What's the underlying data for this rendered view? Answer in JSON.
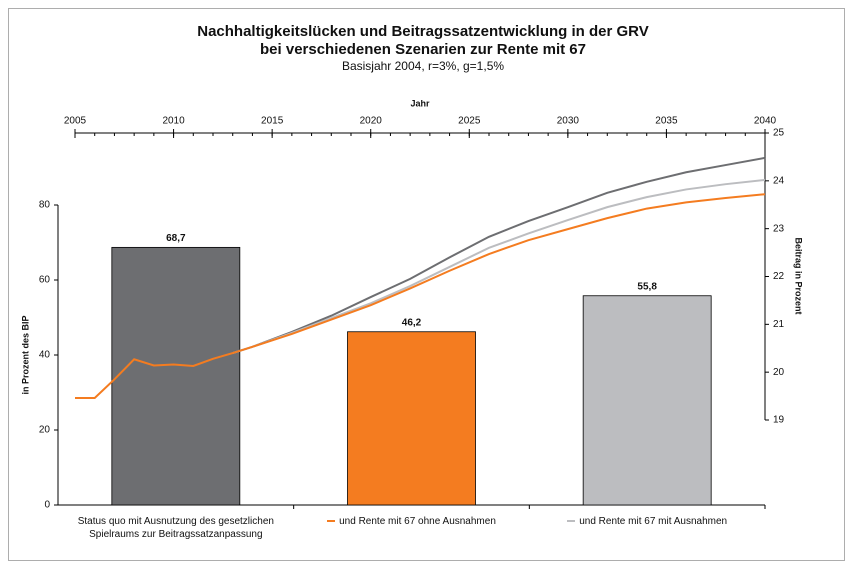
{
  "chart_data": [
    {
      "type": "bar",
      "title": "Nachhaltigkeitslücken und Beitragssatzentwicklung in der GRV",
      "title2": "bei verschiedenen Szenarien zur Rente mit 67",
      "subtitle": "Basisjahr 2004, r=3%, g=1,5%",
      "ylabel": "in Prozent des BIP",
      "categories": [
        "Status quo mit Ausnutzung des gesetzlichen Spielraums zur Beitragssatzanpassung",
        "und Rente mit 67 ohne Ausnahmen",
        "und Rente mit 67 mit Ausnahmen"
      ],
      "values": [
        68.7,
        46.2,
        55.8
      ],
      "value_labels": [
        "68,7",
        "46,2",
        "55,8"
      ],
      "colors": [
        "#6d6e71",
        "#f47c20",
        "#bcbdc0"
      ],
      "ylim": [
        0,
        80
      ],
      "yticks": [
        0,
        20,
        40,
        60,
        80
      ]
    },
    {
      "type": "line",
      "xlabel": "Jahr",
      "ylabel": "Beitrag in Prozent",
      "x": [
        2005,
        2006,
        2007,
        2008,
        2009,
        2010,
        2011,
        2012,
        2013,
        2014,
        2016,
        2018,
        2020,
        2022,
        2024,
        2026,
        2028,
        2030,
        2032,
        2034,
        2036,
        2038,
        2040
      ],
      "series": [
        {
          "name": "Status quo",
          "color": "#6d6e71",
          "values": [
            null,
            null,
            null,
            null,
            null,
            null,
            null,
            null,
            20.4,
            20.53,
            20.84,
            21.18,
            21.57,
            21.95,
            22.4,
            22.83,
            23.16,
            23.45,
            23.75,
            23.98,
            24.18,
            24.33,
            24.48
          ]
        },
        {
          "name": "mit Ausnahmen",
          "color": "#bcbdc0",
          "values": [
            null,
            null,
            null,
            null,
            null,
            null,
            null,
            null,
            20.4,
            20.53,
            20.82,
            21.13,
            21.44,
            21.8,
            22.2,
            22.6,
            22.9,
            23.18,
            23.45,
            23.66,
            23.82,
            23.93,
            24.02
          ]
        },
        {
          "name": "ohne Ausnahmen",
          "color": "#f47c20",
          "values": [
            19.46,
            19.46,
            19.85,
            20.27,
            20.14,
            20.16,
            20.13,
            20.28,
            20.4,
            20.53,
            20.8,
            21.1,
            21.4,
            21.75,
            22.12,
            22.47,
            22.76,
            22.99,
            23.22,
            23.42,
            23.55,
            23.64,
            23.72
          ]
        }
      ],
      "xlim": [
        2005,
        2040
      ],
      "xticks": [
        2005,
        2010,
        2015,
        2020,
        2025,
        2030,
        2035,
        2040
      ],
      "ylim": [
        19,
        25
      ],
      "yticks": [
        19,
        20,
        21,
        22,
        23,
        24,
        25
      ]
    }
  ]
}
